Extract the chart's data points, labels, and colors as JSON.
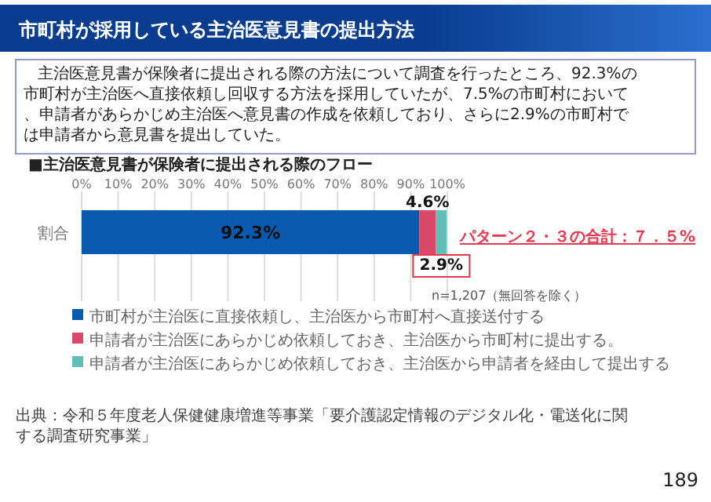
{
  "chart_data": {
    "type": "bar",
    "orientation": "horizontal",
    "stacked": true,
    "title": "市町村が採用している主治医意見書の提出方法",
    "subtitle": "主治医意見書が保険者に提出される際の方法について調査を行ったところ、92.3%の市町村が主治医へ直接依頼し回収する方法を採用していたが、7.5%の市町村において、申請者があらかじめ主治医へ意見書の作成を依頼しており、さらに2.9%の市町村では申請者から意見書を提出していた。",
    "categories": [
      "割合"
    ],
    "series": [
      {
        "name": "市町村が主治医に直接依頼し、主治医から市町村へ直接送付する",
        "color": "#0a5bb0",
        "values": [
          92.3
        ],
        "value_labels": [
          "92.3%"
        ]
      },
      {
        "name": "申請者が主治医にあらかじめ依頼しておき、主治医から市町村に提出する。",
        "color": "#d94a6a",
        "values": [
          4.6
        ],
        "value_labels": [
          "4.6%"
        ]
      },
      {
        "name": "申請者が主治医にあらかじめ依頼しておき、主治医から申請者を経由して提出する",
        "color": "#62bfb5",
        "values": [
          2.9
        ],
        "value_labels": [
          "2.9%"
        ]
      }
    ],
    "xlim": [
      0,
      100
    ],
    "xticks": [
      {
        "value": 0,
        "label": "0%"
      },
      {
        "value": 10,
        "label": "10%"
      },
      {
        "value": 20,
        "label": "20%"
      },
      {
        "value": 30,
        "label": "30%"
      },
      {
        "value": 40,
        "label": "40%"
      },
      {
        "value": 50,
        "label": "50%"
      },
      {
        "value": 60,
        "label": "60%"
      },
      {
        "value": 70,
        "label": "70%"
      },
      {
        "value": 80,
        "label": "80%"
      },
      {
        "value": 90,
        "label": "90%"
      },
      {
        "value": 100,
        "label": "100%"
      }
    ],
    "grid": "x",
    "legend": "bottom",
    "annotations": [
      "■主治医意見書が保険者に提出される際のフロー",
      "パターン２・３の合計：７．５%",
      "n=1,207（無回答を除く）",
      "出典：令和５年度老人保健健康増進等事業「要介護認定情報のデジタル化・電送化に関する調査研究事業」",
      "189"
    ]
  }
}
